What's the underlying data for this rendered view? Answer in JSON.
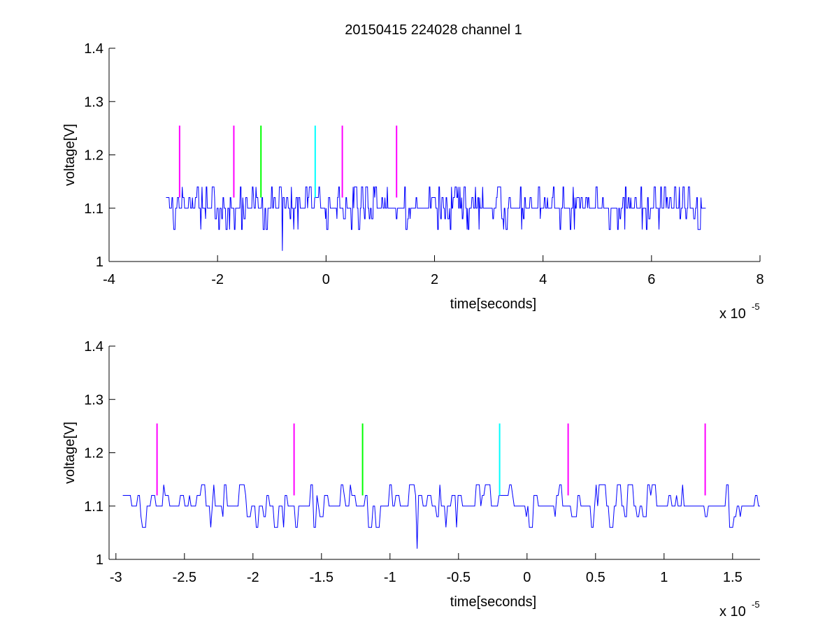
{
  "figure": {
    "title": "20150415 224028 channel 1"
  },
  "chart_data": [
    {
      "type": "line",
      "title": "20150415 224028 channel 1",
      "xlabel": "time[seconds]",
      "ylabel": "voltage[V]",
      "x_multiplier_label": "x 10",
      "x_multiplier_exponent": "-5",
      "xlim": [
        -4,
        8
      ],
      "ylim": [
        1,
        1.4
      ],
      "x_unit_scale": 1e-05,
      "xticks": [
        -4,
        -2,
        0,
        2,
        4,
        6,
        8
      ],
      "xtick_labels": [
        "-4",
        "-2",
        "0",
        "2",
        "4",
        "6",
        "8"
      ],
      "yticks": [
        1,
        1.1,
        1.2,
        1.3,
        1.4
      ],
      "ytick_labels": [
        "1",
        "1.1",
        "1.2",
        "1.3",
        "1.4"
      ],
      "grid": false,
      "series": [
        {
          "kind": "signal",
          "color": "#0000ff",
          "x_range": [
            -2.95,
            7.0
          ],
          "levels": [
            1.06,
            1.08,
            1.1,
            1.12,
            1.14
          ],
          "baseline": 1.1,
          "min_value": {
            "x": -0.8,
            "y": 1.02
          }
        }
      ],
      "markers": [
        {
          "x": -2.7,
          "y_range": [
            1.12,
            1.255
          ],
          "color": "#ff00ff"
        },
        {
          "x": -1.7,
          "y_range": [
            1.12,
            1.255
          ],
          "color": "#ff00ff"
        },
        {
          "x": -1.2,
          "y_range": [
            1.12,
            1.255
          ],
          "color": "#00ff00"
        },
        {
          "x": -0.2,
          "y_range": [
            1.12,
            1.255
          ],
          "color": "#00ffff"
        },
        {
          "x": 0.3,
          "y_range": [
            1.12,
            1.255
          ],
          "color": "#ff00ff"
        },
        {
          "x": 1.3,
          "y_range": [
            1.12,
            1.255
          ],
          "color": "#ff00ff"
        }
      ]
    },
    {
      "type": "line",
      "title": "",
      "xlabel": "time[seconds]",
      "ylabel": "voltage[V]",
      "x_multiplier_label": "x 10",
      "x_multiplier_exponent": "-5",
      "xlim": [
        -3.05,
        1.7
      ],
      "ylim": [
        1,
        1.4
      ],
      "x_unit_scale": 1e-05,
      "xticks": [
        -3,
        -2.5,
        -2,
        -1.5,
        -1,
        -0.5,
        0,
        0.5,
        1,
        1.5
      ],
      "xtick_labels": [
        "-3",
        "-2.5",
        "-2",
        "-1.5",
        "-1",
        "-0.5",
        "0",
        "0.5",
        "1",
        "1.5"
      ],
      "yticks": [
        1,
        1.1,
        1.2,
        1.3,
        1.4
      ],
      "ytick_labels": [
        "1",
        "1.1",
        "1.2",
        "1.3",
        "1.4"
      ],
      "grid": false,
      "series": [
        {
          "kind": "signal",
          "color": "#0000ff",
          "x_range": [
            -2.95,
            1.7
          ],
          "levels": [
            1.06,
            1.08,
            1.1,
            1.12,
            1.14
          ],
          "baseline": 1.1,
          "min_value": {
            "x": -0.8,
            "y": 1.02
          }
        }
      ],
      "markers": [
        {
          "x": -2.7,
          "y_range": [
            1.12,
            1.255
          ],
          "color": "#ff00ff"
        },
        {
          "x": -1.7,
          "y_range": [
            1.12,
            1.255
          ],
          "color": "#ff00ff"
        },
        {
          "x": -1.2,
          "y_range": [
            1.12,
            1.255
          ],
          "color": "#00ff00"
        },
        {
          "x": -0.2,
          "y_range": [
            1.12,
            1.255
          ],
          "color": "#00ffff"
        },
        {
          "x": 0.3,
          "y_range": [
            1.12,
            1.255
          ],
          "color": "#ff00ff"
        },
        {
          "x": 1.3,
          "y_range": [
            1.12,
            1.255
          ],
          "color": "#ff00ff"
        }
      ]
    }
  ]
}
